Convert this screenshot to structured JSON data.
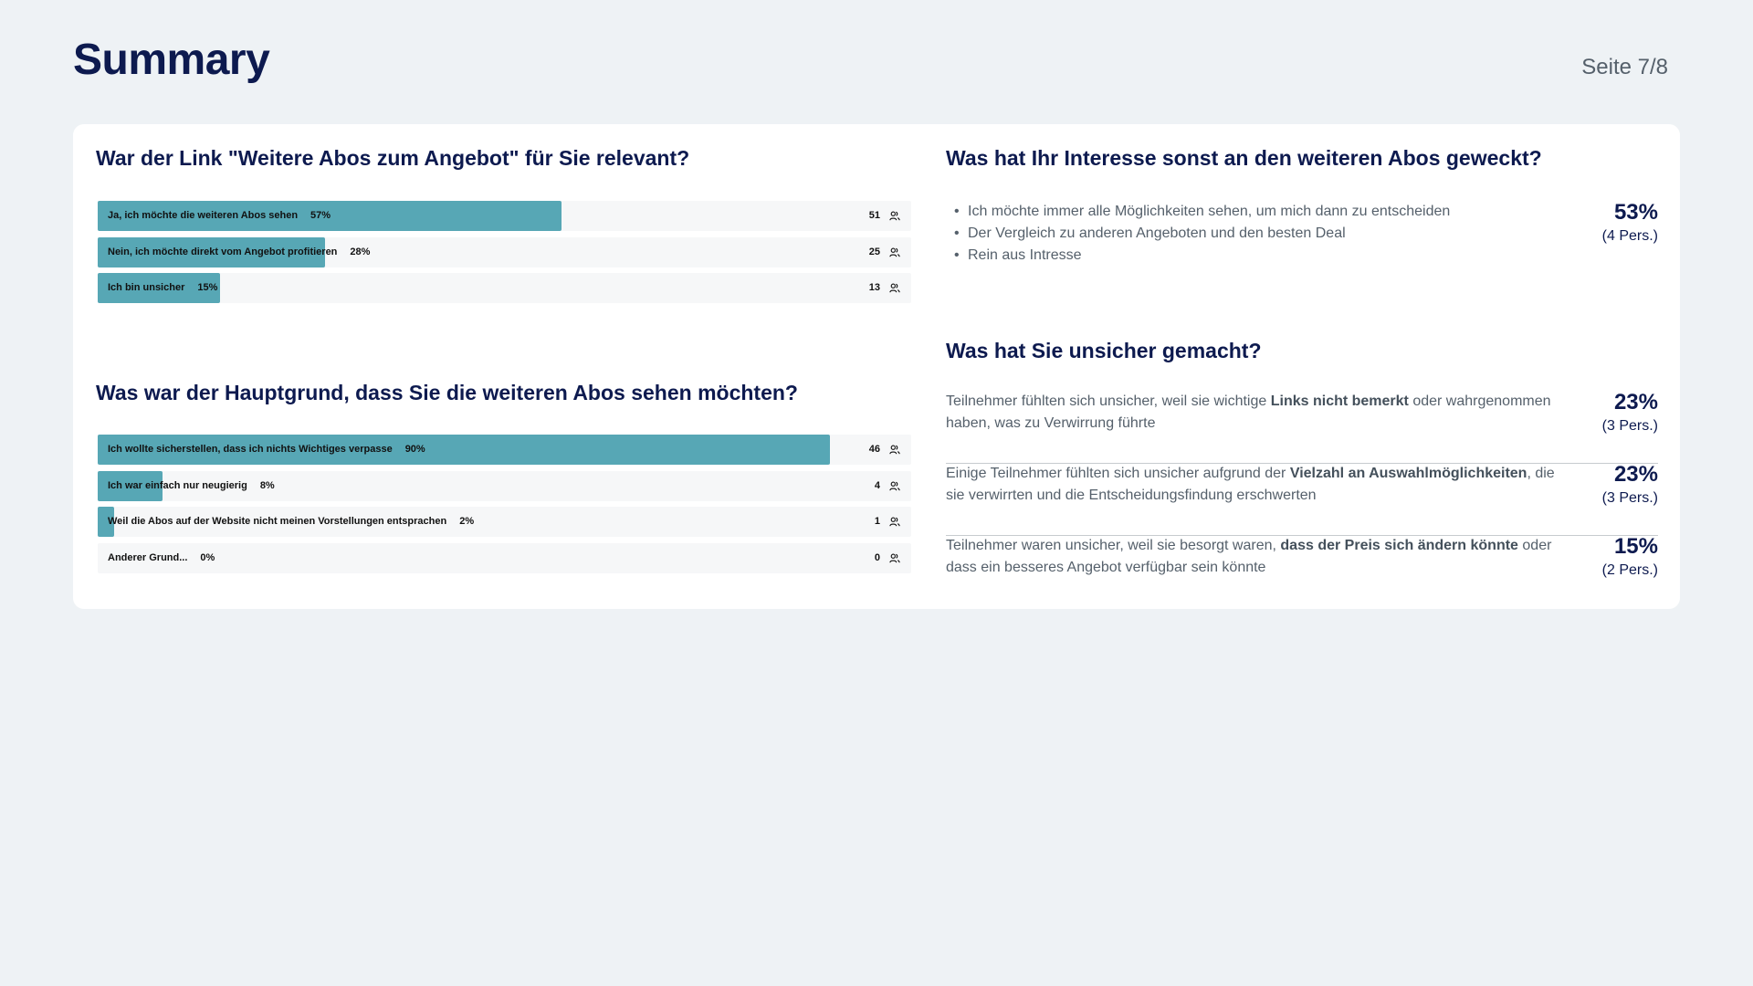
{
  "header": {
    "title": "Summary",
    "page_number": "Seite 7/8"
  },
  "icons": {
    "count_icon": "people-icon"
  },
  "colors": {
    "bar_fill": "#57a7b5",
    "bar_track": "#f6f7f8",
    "heading": "#0d1a4f"
  },
  "chart_data": [
    {
      "type": "bar",
      "orientation": "horizontal",
      "title": "War der Link \"Weitere Abos zum Angebot\" für Sie relevant?",
      "categories": [
        "Ja, ich möchte die weiteren Abos sehen",
        "Nein, ich möchte direkt vom Angebot profitieren",
        "Ich bin unsicher"
      ],
      "values": [
        57,
        28,
        15
      ],
      "percent_labels": [
        "57%",
        "28%",
        "15%"
      ],
      "counts": [
        "51",
        "25",
        "13"
      ],
      "xlim": [
        0,
        100
      ]
    },
    {
      "type": "bar",
      "orientation": "horizontal",
      "title": "Was war der Hauptgrund, dass Sie die weiteren Abos sehen möchten?",
      "categories": [
        "Ich wollte sicherstellen, dass ich nichts Wichtiges verpasse",
        "Ich war einfach nur neugierig",
        "Weil die Abos auf der Website nicht meinen Vorstellungen entsprachen",
        "Anderer Grund..."
      ],
      "values": [
        90,
        8,
        2,
        0
      ],
      "percent_labels": [
        "90%",
        "8%",
        "2%",
        "0%"
      ],
      "counts": [
        "46",
        "4",
        "1",
        "0"
      ],
      "xlim": [
        0,
        100
      ]
    }
  ],
  "interest": {
    "title": "Was hat Ihr Interesse sonst an den weiteren Abos geweckt?",
    "items": [
      "Ich möchte immer alle Möglichkeiten sehen, um mich dann zu entscheiden",
      "Der Vergleich zu anderen Angeboten und den besten Deal",
      "Rein aus Intresse"
    ],
    "value": "53%",
    "sub": "(4 Pers.)"
  },
  "uncertain": {
    "title": "Was hat Sie unsicher gemacht?",
    "items": [
      {
        "pre": "Teilnehmer fühlten sich unsicher, weil sie wichtige ",
        "bold": "Links nicht bemerkt",
        "post": " oder wahrgenommen haben, was zu Verwirrung führte",
        "value": "23%",
        "sub": "(3 Pers.)"
      },
      {
        "pre": "Einige Teilnehmer fühlten sich unsicher aufgrund der ",
        "bold": "Vielzahl an Auswahlmöglichkeiten",
        "post": ", die sie verwirrten und die Entscheidungsfindung erschwerten",
        "value": "23%",
        "sub": "(3 Pers.)"
      },
      {
        "pre": "Teilnehmer waren unsicher, weil sie besorgt waren, ",
        "bold": "dass der Preis sich ändern könnte",
        "post": " oder dass ein besseres Angebot verfügbar sein könnte",
        "value": "15%",
        "sub": "(2 Pers.)"
      }
    ]
  }
}
